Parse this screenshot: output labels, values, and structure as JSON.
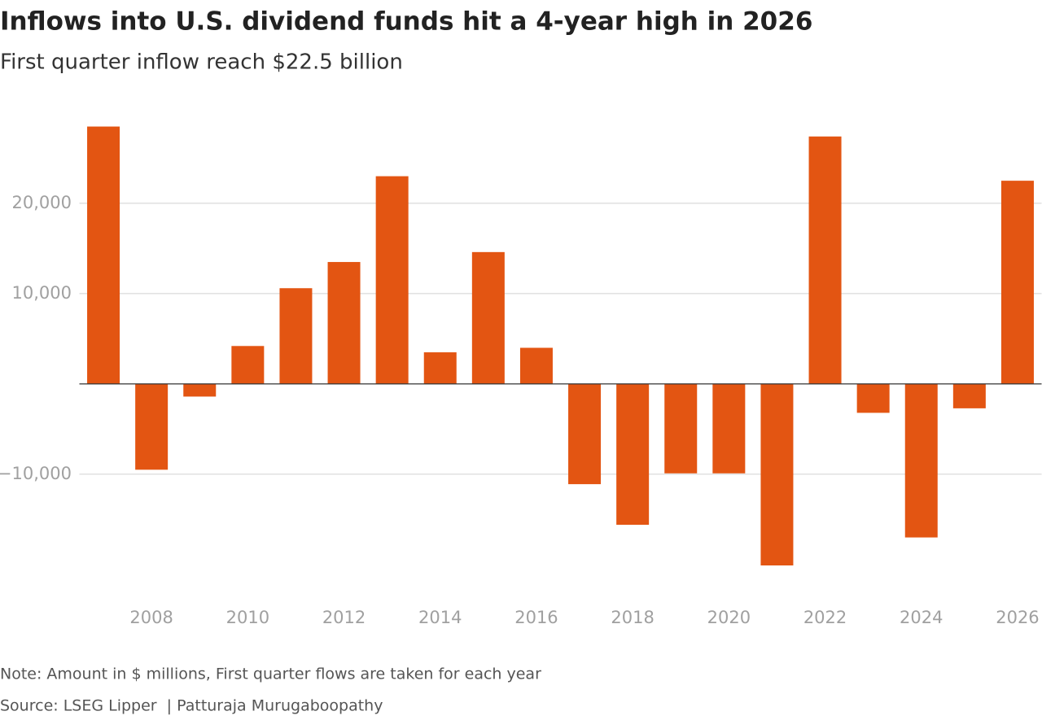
{
  "chart_data": {
    "type": "bar",
    "title": "Inflows into U.S. dividend funds hit a 4-year high in 2026",
    "subtitle": "First quarter inflow reach $22.5 billion",
    "categories": [
      null,
      "2008",
      null,
      "2010",
      null,
      "2012",
      null,
      "2014",
      null,
      "2016",
      null,
      "2018",
      null,
      "2020",
      null,
      "2022",
      null,
      "2024",
      null,
      "2026"
    ],
    "values": [
      28500,
      -9500,
      -1400,
      4200,
      10600,
      13500,
      23000,
      3500,
      14600,
      4000,
      -11100,
      -15600,
      -9900,
      -9900,
      -20100,
      27400,
      -3200,
      -17000,
      -2700,
      22500
    ],
    "color": "#e35512",
    "ylim": [
      -22800,
      29900
    ],
    "yticks": [
      {
        "value": -10000,
        "label": "−10,000"
      },
      {
        "value": 10000,
        "label": "10,000"
      },
      {
        "value": 20000,
        "label": "20,000"
      }
    ],
    "grid": true,
    "note": "Note: Amount in $ millions, First quarter flows are taken for each year",
    "source": "Source: LSEG Lipper  | Patturaja Murugaboopathy"
  }
}
